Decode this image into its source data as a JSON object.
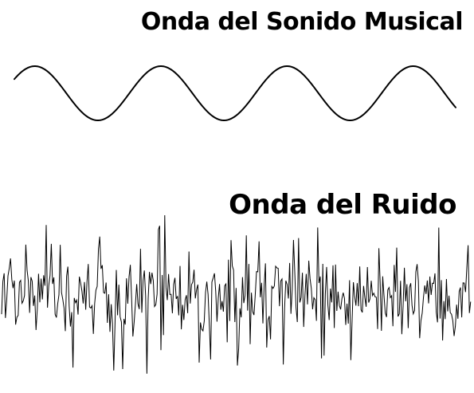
{
  "musical_wave": {
    "title": "Onda del Sonido Musical",
    "stroke_color": "#000000",
    "cycles": 3.5
  },
  "noise_wave": {
    "title": "Onda del Ruido",
    "stroke_color": "#000000"
  }
}
